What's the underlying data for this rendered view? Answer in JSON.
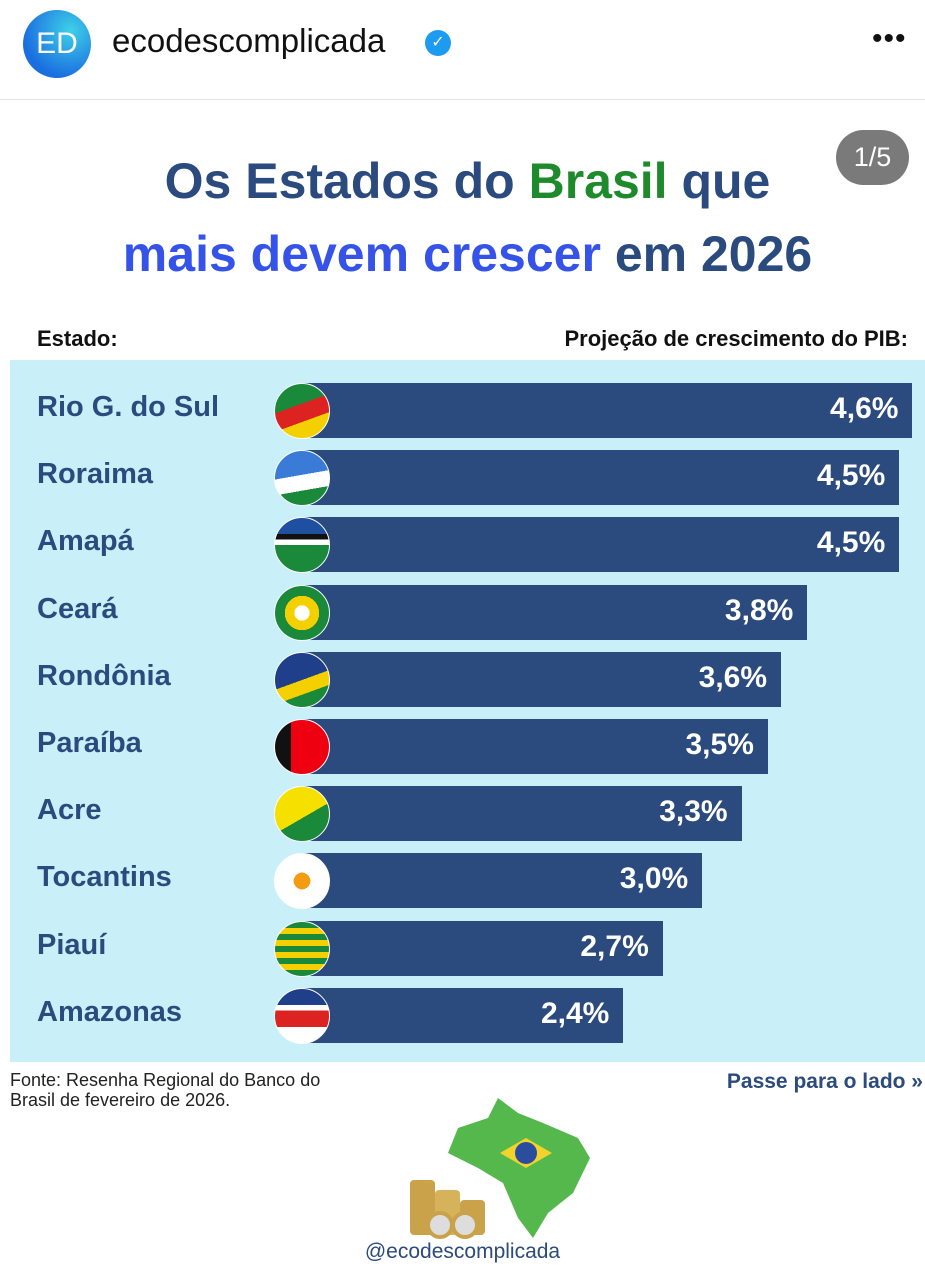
{
  "header": {
    "avatar_initials": "ED",
    "username": "ecodescomplicada",
    "verified_icon": "verified-badge-icon",
    "more_icon": "•••"
  },
  "counter": "1/5",
  "title": {
    "line1_a": "Os Estados do ",
    "line1_b": "Brasil",
    "line1_c": " que",
    "line2_a": "mais devem crescer",
    "line2_b": " em 2026"
  },
  "colors": {
    "bar": "#2b4a7e",
    "panel": "#c9eff8",
    "green": "#1f8a2c",
    "blue": "#3553e8"
  },
  "chart_data": {
    "type": "bar",
    "orientation": "horizontal",
    "xlabel_left": "Estado:",
    "xlabel_right": "Projeção de crescimento do PIB:",
    "categories": [
      "Rio G. do Sul",
      "Roraima",
      "Amapá",
      "Ceará",
      "Rondônia",
      "Paraíba",
      "Acre",
      "Tocantins",
      "Piauí",
      "Amazonas"
    ],
    "values": [
      4.6,
      4.5,
      4.5,
      3.8,
      3.6,
      3.5,
      3.3,
      3.0,
      2.7,
      2.4
    ],
    "labels": [
      "4,6%",
      "4,5%",
      "4,5%",
      "3,8%",
      "3,6%",
      "3,5%",
      "3,3%",
      "3,0%",
      "2,7%",
      "2,4%"
    ],
    "unit": "%"
  },
  "footer": {
    "source": "Fonte: Resenha Regional do Banco do Brasil de fevereiro de 2026.",
    "next": "Passe para o lado »",
    "handle": "@ecodescomplicada"
  }
}
